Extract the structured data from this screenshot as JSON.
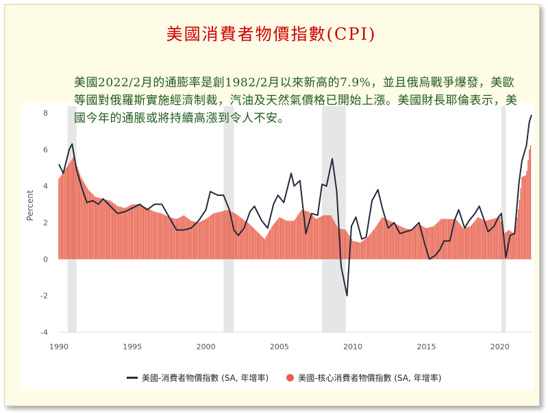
{
  "page": {
    "title": "美國消費者物價指數(CPI)",
    "note": "美國2022/2月的通膨率是創1982/2月以來新高的7.9%，並且俄烏戰爭爆發，美歐等國對俄羅斯實施經濟制裁，汽油及天然氣價格已開始上漲。美國財長耶倫表示，美國今年的通脹或將持續高漲到令人不安。"
  },
  "chart_data": {
    "type": "line",
    "title": "",
    "xlabel": "",
    "ylabel": "Percent",
    "xlim": [
      1990,
      2022.2
    ],
    "ylim": [
      -4,
      8
    ],
    "x_ticks": [
      "1990",
      "1995",
      "2000",
      "2005",
      "2010",
      "2015",
      "2020"
    ],
    "y_ticks": [
      "8",
      "6",
      "4",
      "2",
      "0",
      "-2",
      "-4"
    ],
    "recessions": [
      [
        1990.6,
        1991.2
      ],
      [
        2001.2,
        2001.9
      ],
      [
        2007.9,
        2009.5
      ],
      [
        2020.1,
        2020.4
      ]
    ],
    "legend_position": "bottom",
    "colors": {
      "headline": "#222a3a",
      "core": "#e8604c",
      "recession": "#e6e6e6"
    },
    "series": [
      {
        "name": "美國-消費者物價指數 (SA, 年增率)",
        "kind": "line",
        "points": [
          [
            1990,
            5.2
          ],
          [
            1990.3,
            4.7
          ],
          [
            1990.7,
            6.0
          ],
          [
            1990.9,
            6.3
          ],
          [
            1991.2,
            4.9
          ],
          [
            1991.6,
            3.8
          ],
          [
            1991.9,
            3.1
          ],
          [
            1992.3,
            3.2
          ],
          [
            1992.7,
            3.0
          ],
          [
            1993.0,
            3.3
          ],
          [
            1993.5,
            2.9
          ],
          [
            1994.0,
            2.5
          ],
          [
            1994.5,
            2.6
          ],
          [
            1995.0,
            2.8
          ],
          [
            1995.5,
            3.0
          ],
          [
            1996.0,
            2.7
          ],
          [
            1996.5,
            3.0
          ],
          [
            1997.0,
            3.0
          ],
          [
            1997.5,
            2.3
          ],
          [
            1998.0,
            1.6
          ],
          [
            1998.5,
            1.6
          ],
          [
            1999.0,
            1.7
          ],
          [
            1999.5,
            2.1
          ],
          [
            2000.0,
            2.7
          ],
          [
            2000.3,
            3.7
          ],
          [
            2000.8,
            3.5
          ],
          [
            2001.2,
            3.5
          ],
          [
            2001.6,
            2.7
          ],
          [
            2001.9,
            1.6
          ],
          [
            2002.2,
            1.3
          ],
          [
            2002.6,
            1.7
          ],
          [
            2003.0,
            2.6
          ],
          [
            2003.3,
            2.9
          ],
          [
            2003.8,
            2.1
          ],
          [
            2004.2,
            1.7
          ],
          [
            2004.6,
            3.0
          ],
          [
            2004.9,
            3.5
          ],
          [
            2005.3,
            3.1
          ],
          [
            2005.8,
            4.7
          ],
          [
            2006.0,
            4.0
          ],
          [
            2006.4,
            4.3
          ],
          [
            2006.8,
            1.4
          ],
          [
            2007.2,
            2.5
          ],
          [
            2007.6,
            2.4
          ],
          [
            2007.9,
            4.1
          ],
          [
            2008.2,
            4.0
          ],
          [
            2008.6,
            5.5
          ],
          [
            2008.9,
            3.7
          ],
          [
            2009.2,
            -0.4
          ],
          [
            2009.6,
            -2.0
          ],
          [
            2009.9,
            1.8
          ],
          [
            2010.2,
            2.3
          ],
          [
            2010.6,
            1.1
          ],
          [
            2010.9,
            1.2
          ],
          [
            2011.3,
            3.2
          ],
          [
            2011.7,
            3.8
          ],
          [
            2012.0,
            2.8
          ],
          [
            2012.4,
            1.7
          ],
          [
            2012.8,
            2.0
          ],
          [
            2013.2,
            1.4
          ],
          [
            2013.6,
            1.5
          ],
          [
            2014.0,
            1.6
          ],
          [
            2014.5,
            2.0
          ],
          [
            2014.9,
            0.8
          ],
          [
            2015.2,
            0.0
          ],
          [
            2015.6,
            0.2
          ],
          [
            2015.9,
            0.5
          ],
          [
            2016.2,
            1.0
          ],
          [
            2016.6,
            1.0
          ],
          [
            2016.9,
            2.1
          ],
          [
            2017.2,
            2.7
          ],
          [
            2017.6,
            1.7
          ],
          [
            2017.9,
            2.1
          ],
          [
            2018.3,
            2.5
          ],
          [
            2018.6,
            2.9
          ],
          [
            2018.9,
            2.2
          ],
          [
            2019.2,
            1.5
          ],
          [
            2019.6,
            1.8
          ],
          [
            2019.9,
            2.3
          ],
          [
            2020.1,
            2.5
          ],
          [
            2020.4,
            0.1
          ],
          [
            2020.7,
            1.3
          ],
          [
            2021.0,
            1.4
          ],
          [
            2021.3,
            4.2
          ],
          [
            2021.5,
            5.4
          ],
          [
            2021.8,
            6.2
          ],
          [
            2022.0,
            7.5
          ],
          [
            2022.15,
            7.9
          ]
        ]
      },
      {
        "name": "美國-核心消費者物價指數 (SA, 年增率)",
        "kind": "bar",
        "points": [
          [
            1990,
            4.4
          ],
          [
            1990.5,
            5.0
          ],
          [
            1991.0,
            5.6
          ],
          [
            1991.5,
            4.5
          ],
          [
            1992.0,
            3.8
          ],
          [
            1992.5,
            3.4
          ],
          [
            1993.0,
            3.3
          ],
          [
            1993.5,
            3.2
          ],
          [
            1994.0,
            2.9
          ],
          [
            1994.5,
            2.8
          ],
          [
            1995.0,
            3.0
          ],
          [
            1995.5,
            3.0
          ],
          [
            1996.0,
            2.8
          ],
          [
            1996.5,
            2.6
          ],
          [
            1997.0,
            2.5
          ],
          [
            1997.5,
            2.3
          ],
          [
            1998.0,
            2.2
          ],
          [
            1998.5,
            2.4
          ],
          [
            1999.0,
            2.1
          ],
          [
            1999.5,
            2.0
          ],
          [
            2000.0,
            2.2
          ],
          [
            2000.5,
            2.5
          ],
          [
            2001.0,
            2.6
          ],
          [
            2001.5,
            2.7
          ],
          [
            2002.0,
            2.5
          ],
          [
            2002.5,
            2.2
          ],
          [
            2003.0,
            1.9
          ],
          [
            2003.5,
            1.5
          ],
          [
            2004.0,
            1.1
          ],
          [
            2004.5,
            1.8
          ],
          [
            2005.0,
            2.3
          ],
          [
            2005.5,
            2.1
          ],
          [
            2006.0,
            2.1
          ],
          [
            2006.5,
            2.7
          ],
          [
            2007.0,
            2.6
          ],
          [
            2007.5,
            2.2
          ],
          [
            2008.0,
            2.4
          ],
          [
            2008.5,
            2.4
          ],
          [
            2009.0,
            1.7
          ],
          [
            2009.5,
            1.6
          ],
          [
            2010.0,
            1.0
          ],
          [
            2010.5,
            0.9
          ],
          [
            2011.0,
            1.2
          ],
          [
            2011.5,
            1.7
          ],
          [
            2012.0,
            2.3
          ],
          [
            2012.5,
            2.1
          ],
          [
            2013.0,
            1.9
          ],
          [
            2013.5,
            1.7
          ],
          [
            2014.0,
            1.6
          ],
          [
            2014.5,
            1.9
          ],
          [
            2015.0,
            1.7
          ],
          [
            2015.5,
            1.8
          ],
          [
            2016.0,
            2.2
          ],
          [
            2016.5,
            2.2
          ],
          [
            2017.0,
            2.2
          ],
          [
            2017.5,
            1.7
          ],
          [
            2018.0,
            1.8
          ],
          [
            2018.5,
            2.3
          ],
          [
            2019.0,
            2.1
          ],
          [
            2019.5,
            2.2
          ],
          [
            2020.0,
            2.3
          ],
          [
            2020.3,
            1.4
          ],
          [
            2020.6,
            1.6
          ],
          [
            2021.0,
            1.4
          ],
          [
            2021.3,
            3.0
          ],
          [
            2021.5,
            4.5
          ],
          [
            2021.8,
            4.6
          ],
          [
            2022.0,
            6.0
          ],
          [
            2022.15,
            6.4
          ]
        ]
      }
    ]
  }
}
